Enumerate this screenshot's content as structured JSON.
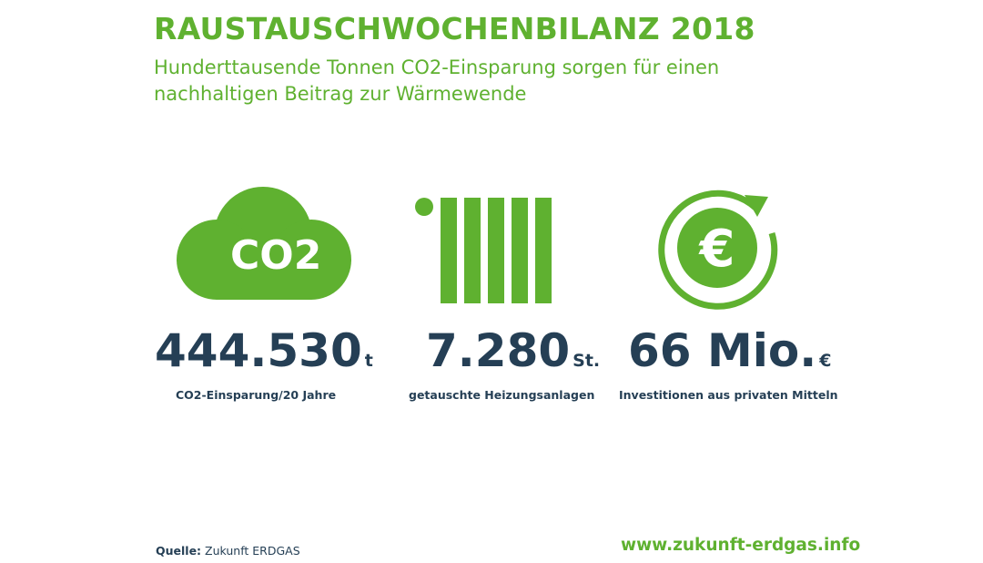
{
  "title": "RAUSTAUSCHWOCHENBILANZ 2018",
  "subtitle": {
    "line1": "Hunderttausende Tonnen CO2-Einsparung sorgen für einen",
    "line2": "nachhaltigen Beitrag zur Wärmewende"
  },
  "colors": {
    "green": "#5fb130",
    "navy": "#253f55"
  },
  "stats": [
    {
      "icon": "co2-cloud-icon",
      "icon_text": "CO2",
      "value": "444.530",
      "unit": "t",
      "caption": "CO2-Einsparung/20 Jahre"
    },
    {
      "icon": "radiator-icon",
      "value": "7.280",
      "unit": "St.",
      "caption": "getauschte Heizungsanlagen"
    },
    {
      "icon": "euro-cycle-icon",
      "icon_text": "€",
      "value": "66 Mio.",
      "unit": "€",
      "caption": "Investitionen aus privaten Mitteln"
    }
  ],
  "footer": {
    "source_label": "Quelle:",
    "source_value": "Zukunft ERDGAS",
    "website": "www.zukunft-erdgas.info"
  }
}
